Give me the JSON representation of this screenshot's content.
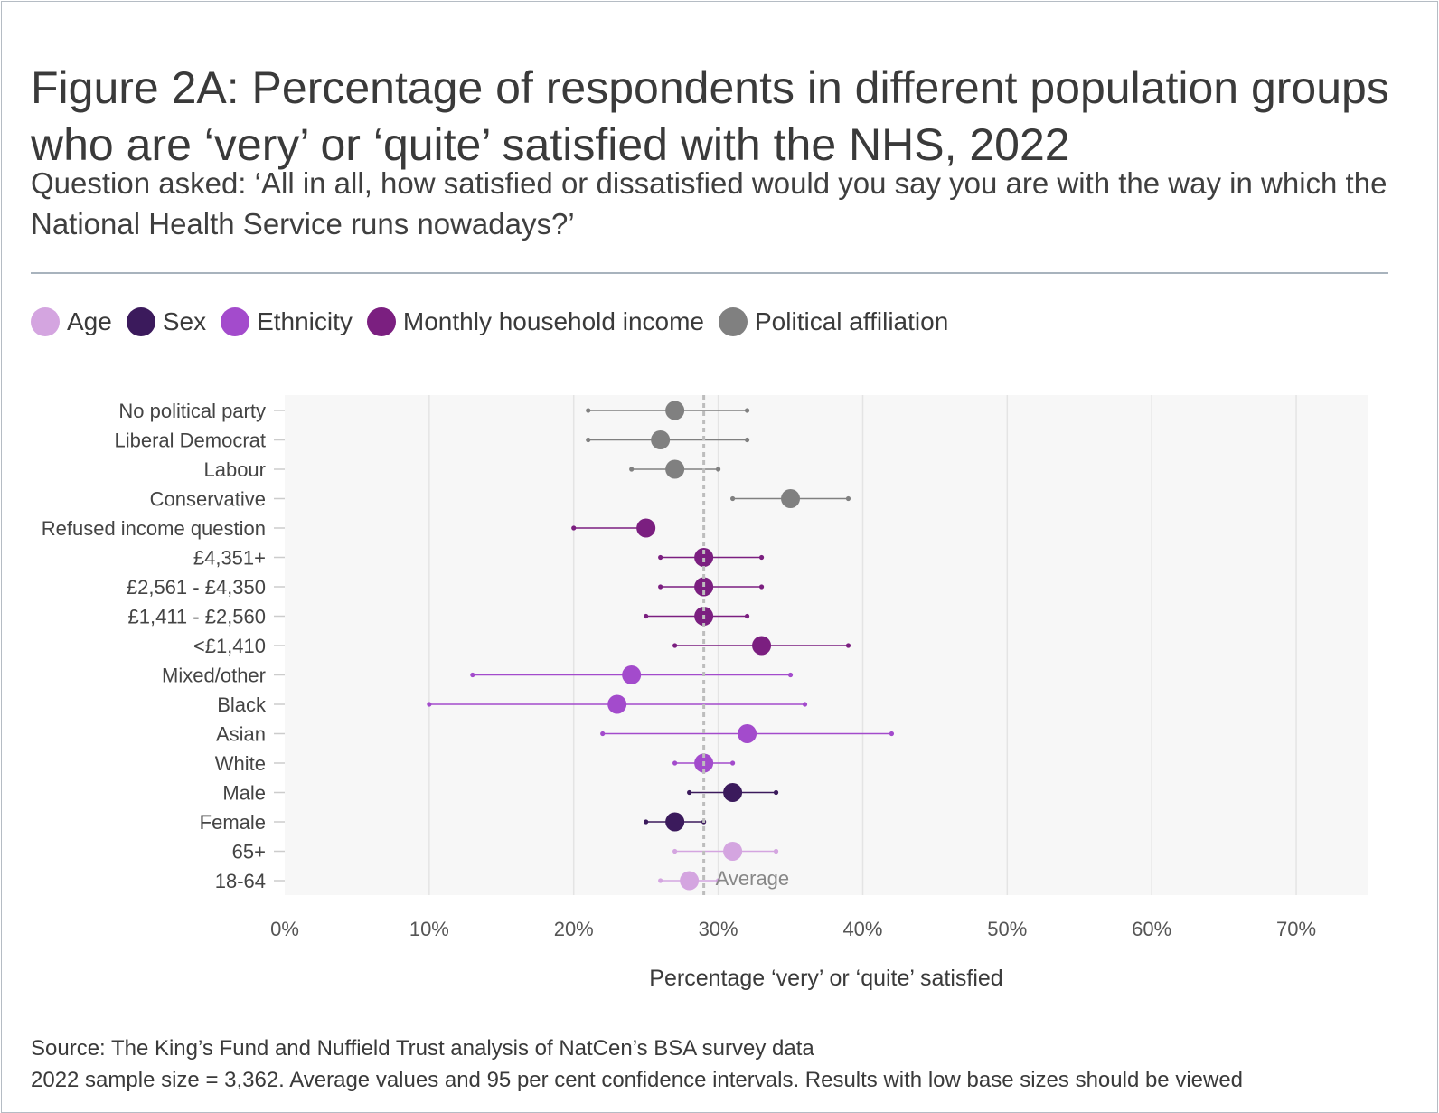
{
  "title": "Figure 2A: Percentage of respondents in different population groups who are ‘very’ or ‘quite’ satisfied with the NHS, 2022",
  "subtitle": "Question asked: ‘All in all, how satisfied or dissatisfied would you say you are with the way in which the National Health Service runs nowadays?’",
  "legend": [
    {
      "label": "Age",
      "color": "#d4a5e0"
    },
    {
      "label": "Sex",
      "color": "#3b1a5c"
    },
    {
      "label": "Ethnicity",
      "color": "#a34bcc"
    },
    {
      "label": "Monthly household income",
      "color": "#7b1f80"
    },
    {
      "label": "Political affiliation",
      "color": "#808080"
    }
  ],
  "chart_data": {
    "type": "dot-with-error-bars",
    "xlabel": "Percentage ‘very’ or ‘quite’ satisfied",
    "xlim": [
      0,
      75
    ],
    "xticks": [
      0,
      10,
      20,
      30,
      40,
      50,
      60,
      70
    ],
    "xtick_labels": [
      "0%",
      "10%",
      "20%",
      "30%",
      "40%",
      "50%",
      "60%",
      "70%"
    ],
    "reference_line": {
      "value": 29,
      "label": "Average"
    },
    "rows": [
      {
        "label": "No political party",
        "group": "Political affiliation",
        "value": 27,
        "low": 21,
        "high": 32
      },
      {
        "label": "Liberal Democrat",
        "group": "Political affiliation",
        "value": 26,
        "low": 21,
        "high": 32
      },
      {
        "label": "Labour",
        "group": "Political affiliation",
        "value": 27,
        "low": 24,
        "high": 30
      },
      {
        "label": "Conservative",
        "group": "Political affiliation",
        "value": 35,
        "low": 31,
        "high": 39
      },
      {
        "label": "Refused income question",
        "group": "Monthly household income",
        "value": 25,
        "low": 20,
        "high": 25
      },
      {
        "label": "£4,351+",
        "group": "Monthly household income",
        "value": 29,
        "low": 26,
        "high": 33
      },
      {
        "label": "£2,561 - £4,350",
        "group": "Monthly household income",
        "value": 29,
        "low": 26,
        "high": 33
      },
      {
        "label": "£1,411 - £2,560",
        "group": "Monthly household income",
        "value": 29,
        "low": 25,
        "high": 32
      },
      {
        "label": "<£1,410",
        "group": "Monthly household income",
        "value": 33,
        "low": 27,
        "high": 39
      },
      {
        "label": "Mixed/other",
        "group": "Ethnicity",
        "value": 24,
        "low": 13,
        "high": 35
      },
      {
        "label": "Black",
        "group": "Ethnicity",
        "value": 23,
        "low": 10,
        "high": 36
      },
      {
        "label": "Asian",
        "group": "Ethnicity",
        "value": 32,
        "low": 22,
        "high": 42
      },
      {
        "label": "White",
        "group": "Ethnicity",
        "value": 29,
        "low": 27,
        "high": 31
      },
      {
        "label": "Male",
        "group": "Sex",
        "value": 31,
        "low": 28,
        "high": 34
      },
      {
        "label": "Female",
        "group": "Sex",
        "value": 27,
        "low": 25,
        "high": 29
      },
      {
        "label": "65+",
        "group": "Age",
        "value": 31,
        "low": 27,
        "high": 34
      },
      {
        "label": "18-64",
        "group": "Age",
        "value": 28,
        "low": 26,
        "high": 30
      }
    ]
  },
  "footer": {
    "source": "Source: The King’s Fund and Nuffield Trust analysis of NatCen’s BSA survey data",
    "note": "2022 sample size = 3,362. Average values and 95 per cent confidence intervals. Results with low base sizes should be viewed"
  }
}
